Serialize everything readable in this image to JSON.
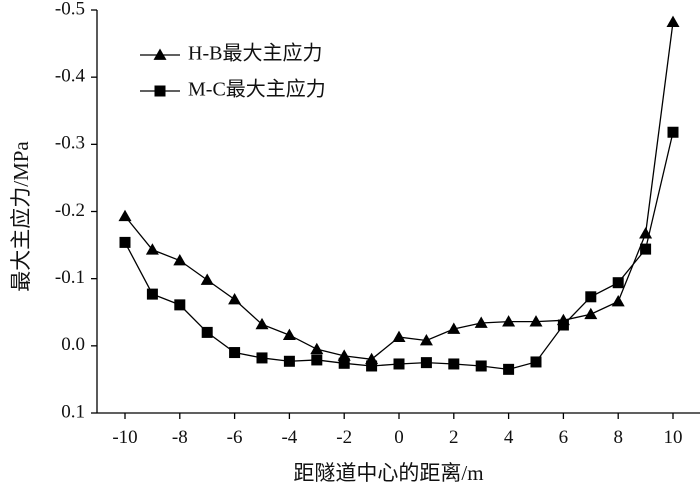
{
  "chart_data": {
    "type": "line",
    "xlabel": "距隧道中心的距离/m",
    "ylabel": "最大主应力/MPa",
    "xlim": [
      -11,
      11
    ],
    "ylim": [
      0.1,
      -0.5
    ],
    "x_ticks": [
      -10,
      -8,
      -6,
      -4,
      -2,
      0,
      2,
      4,
      6,
      8,
      10
    ],
    "x_tick_labels": [
      "-10",
      "-8",
      "-6",
      "-4",
      "-2",
      "0",
      "2",
      "4",
      "6",
      "8",
      "10"
    ],
    "y_ticks": [
      -0.5,
      -0.4,
      -0.3,
      -0.2,
      -0.1,
      0.0,
      0.1
    ],
    "y_tick_labels": [
      "-0.5",
      "-0.4",
      "-0.3",
      "-0.2",
      "-0.1",
      "0.0",
      "0.1"
    ],
    "grid": false,
    "legend": "top-left",
    "series": [
      {
        "name": "H-B最大主应力",
        "marker": "triangle",
        "color": "#000000",
        "x": [
          -10,
          -9,
          -8,
          -7,
          -6,
          -5,
          -4,
          -3,
          -2,
          -1,
          0,
          1,
          2,
          3,
          4,
          5,
          6,
          7,
          8,
          9,
          10
        ],
        "values": [
          -0.193,
          -0.143,
          -0.127,
          -0.098,
          -0.069,
          -0.032,
          -0.016,
          0.005,
          0.015,
          0.02,
          -0.013,
          -0.008,
          -0.025,
          -0.034,
          -0.036,
          -0.036,
          -0.038,
          -0.047,
          -0.066,
          -0.167,
          -0.482
        ]
      },
      {
        "name": "M-C最大主应力",
        "marker": "square",
        "color": "#000000",
        "x": [
          -10,
          -9,
          -8,
          -7,
          -6,
          -5,
          -4,
          -3,
          -2,
          -1,
          0,
          1,
          2,
          3,
          4,
          5,
          6,
          7,
          8,
          9,
          10
        ],
        "values": [
          -0.154,
          -0.077,
          -0.061,
          -0.02,
          0.01,
          0.018,
          0.023,
          0.021,
          0.026,
          0.03,
          0.027,
          0.025,
          0.027,
          0.03,
          0.035,
          0.024,
          -0.031,
          -0.073,
          -0.094,
          -0.144,
          -0.318
        ]
      }
    ]
  }
}
